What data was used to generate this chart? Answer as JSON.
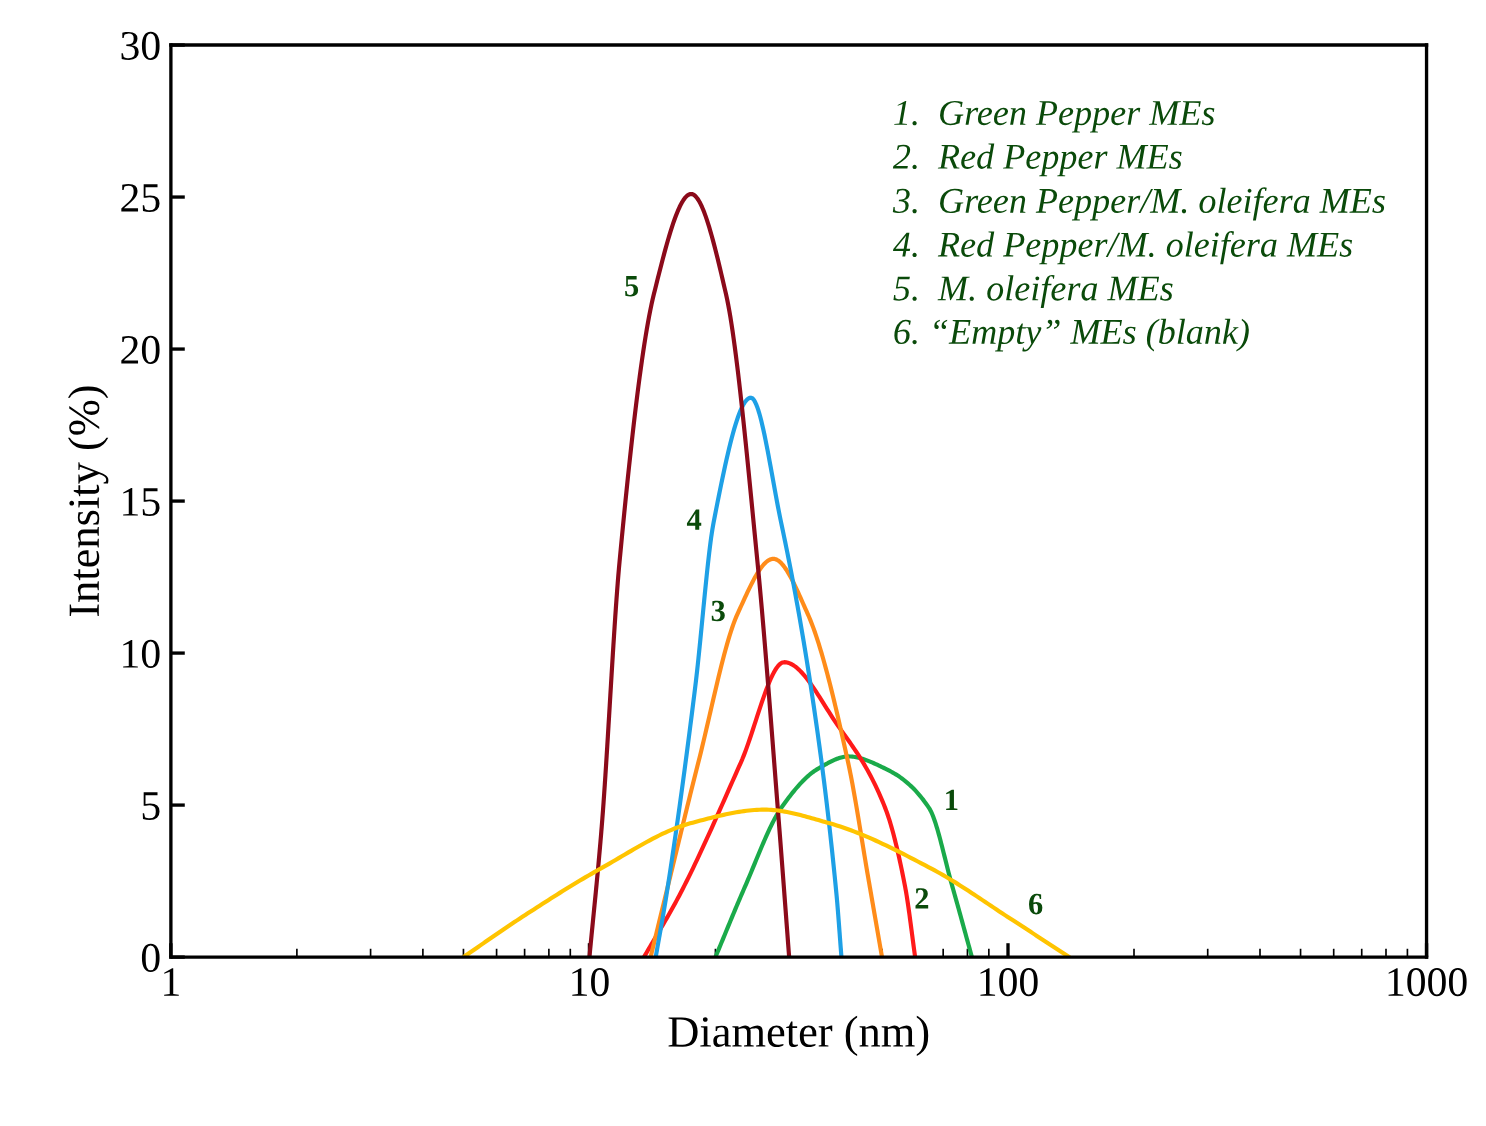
{
  "chart_data": {
    "type": "line",
    "xlabel": "Diameter (nm)",
    "ylabel": "Intensity (%)",
    "log": "x",
    "xlim": [
      1,
      1000
    ],
    "xticks": [
      1,
      10,
      100,
      1000
    ],
    "ylim": [
      0,
      30
    ],
    "yticks": [
      0,
      5,
      10,
      15,
      20,
      25,
      30
    ],
    "grid": false,
    "series": [
      {
        "name": "1",
        "color": "#1aaa4a",
        "x": [
          20,
          23.5,
          28.7,
          35.2,
          41.6,
          50.9,
          64.8,
          73.7,
          82
        ],
        "values": [
          0,
          2.3,
          4.9,
          6.2,
          6.6,
          6.2,
          4.9,
          2.3,
          0
        ]
      },
      {
        "name": "2",
        "color": "#ff1a1a",
        "x": [
          13.5,
          16.5,
          23,
          29.2,
          39.3,
          50.9,
          56.8,
          60
        ],
        "values": [
          0,
          2.1,
          6.4,
          9.7,
          7.6,
          4.9,
          2.3,
          0
        ]
      },
      {
        "name": "3",
        "color": "#ff8c1a",
        "x": [
          14,
          15.5,
          18.2,
          22.6,
          27.5,
          33.2,
          41.5,
          46.5,
          50
        ],
        "values": [
          0,
          2.5,
          6.4,
          11.3,
          13.1,
          11.3,
          6.4,
          2.5,
          0
        ]
      },
      {
        "name": "4",
        "color": "#1ea0e6",
        "x": [
          14.4,
          15.3,
          17.9,
          19.8,
          24.3,
          28.7,
          33.8,
          38.9,
          40
        ],
        "values": [
          0,
          2.1,
          8.9,
          14.3,
          18.4,
          14.3,
          8.9,
          2.1,
          0
        ]
      },
      {
        "name": "5",
        "color": "#8b0a1a",
        "x": [
          10,
          10.7,
          11.8,
          14.25,
          17.5,
          21.2,
          25.2,
          28.4,
          30
        ],
        "values": [
          0,
          4.3,
          13,
          21.8,
          25.1,
          21.8,
          13,
          4.3,
          0
        ]
      },
      {
        "name": "6",
        "color": "#ffc400",
        "x": [
          5,
          6.7,
          10.6,
          17.4,
          26.2,
          37.5,
          65.8,
          103,
          140
        ],
        "values": [
          0,
          1.2,
          2.9,
          4.4,
          4.85,
          4.4,
          2.9,
          1.2,
          0
        ]
      }
    ],
    "annotations": [
      "1.  Green Pepper MEs",
      "2.  Red Pepper MEs",
      "3.  Green Pepper/M. oleifera MEs",
      "4.  Red Pepper/M. oleifera MEs",
      "5.  M. oleifera MEs",
      "6. “Empty” MEs (blank)"
    ]
  }
}
